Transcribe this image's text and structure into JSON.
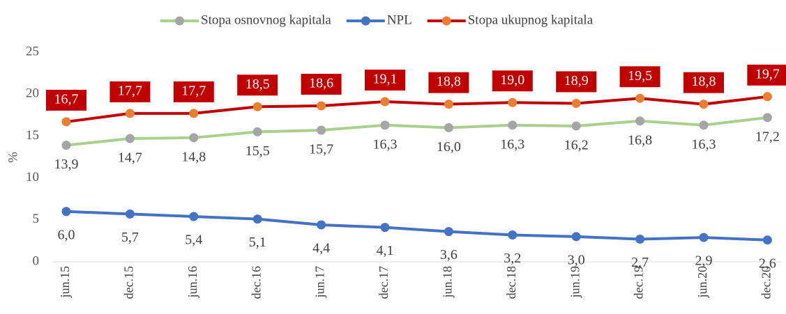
{
  "chart_data": {
    "type": "line",
    "y_label": "%",
    "categories": [
      "jun.15",
      "dec.15",
      "jun.16",
      "dec.16",
      "jun.17",
      "dec.17",
      "jun.18",
      "dec.18",
      "jun.19",
      "dec.19",
      "jun.20",
      "dec.20"
    ],
    "series": [
      {
        "name": "Stopa osnovnog kapitala",
        "color": "#a9d18e",
        "marker_color": "#a5a5a5",
        "values": [
          13.9,
          14.7,
          14.8,
          15.5,
          15.7,
          16.3,
          16.0,
          16.3,
          16.2,
          16.8,
          16.3,
          17.2
        ],
        "value_labels": [
          "13,9",
          "14,7",
          "14,8",
          "15,5",
          "15,7",
          "16,3",
          "16,0",
          "16,3",
          "16,2",
          "16,8",
          "16,3",
          "17,2"
        ]
      },
      {
        "name": "NPL",
        "color": "#4472c4",
        "marker_color": "#4472c4",
        "values": [
          6.0,
          5.7,
          5.4,
          5.1,
          4.4,
          4.1,
          3.6,
          3.2,
          3.0,
          2.7,
          2.9,
          2.6
        ],
        "value_labels": [
          "6,0",
          "5,7",
          "5,4",
          "5,1",
          "4,4",
          "4,1",
          "3,6",
          "3,2",
          "3,0",
          "2,7",
          "2,9",
          "2,6"
        ]
      },
      {
        "name": "Stopa ukupnog kapitala",
        "color": "#c00000",
        "marker_color": "#ed7d31",
        "values": [
          16.7,
          17.7,
          17.7,
          18.5,
          18.6,
          19.1,
          18.8,
          19.0,
          18.9,
          19.5,
          18.8,
          19.7
        ],
        "value_labels": [
          "16,7",
          "17,7",
          "17,7",
          "18,5",
          "18,6",
          "19,1",
          "18,8",
          "19,0",
          "18,9",
          "19,5",
          "18,8",
          "19,7"
        ]
      }
    ],
    "ylim": [
      0,
      25
    ],
    "yticks": [
      0,
      5,
      10,
      15,
      20,
      25
    ],
    "grid": false,
    "legend": "top"
  }
}
